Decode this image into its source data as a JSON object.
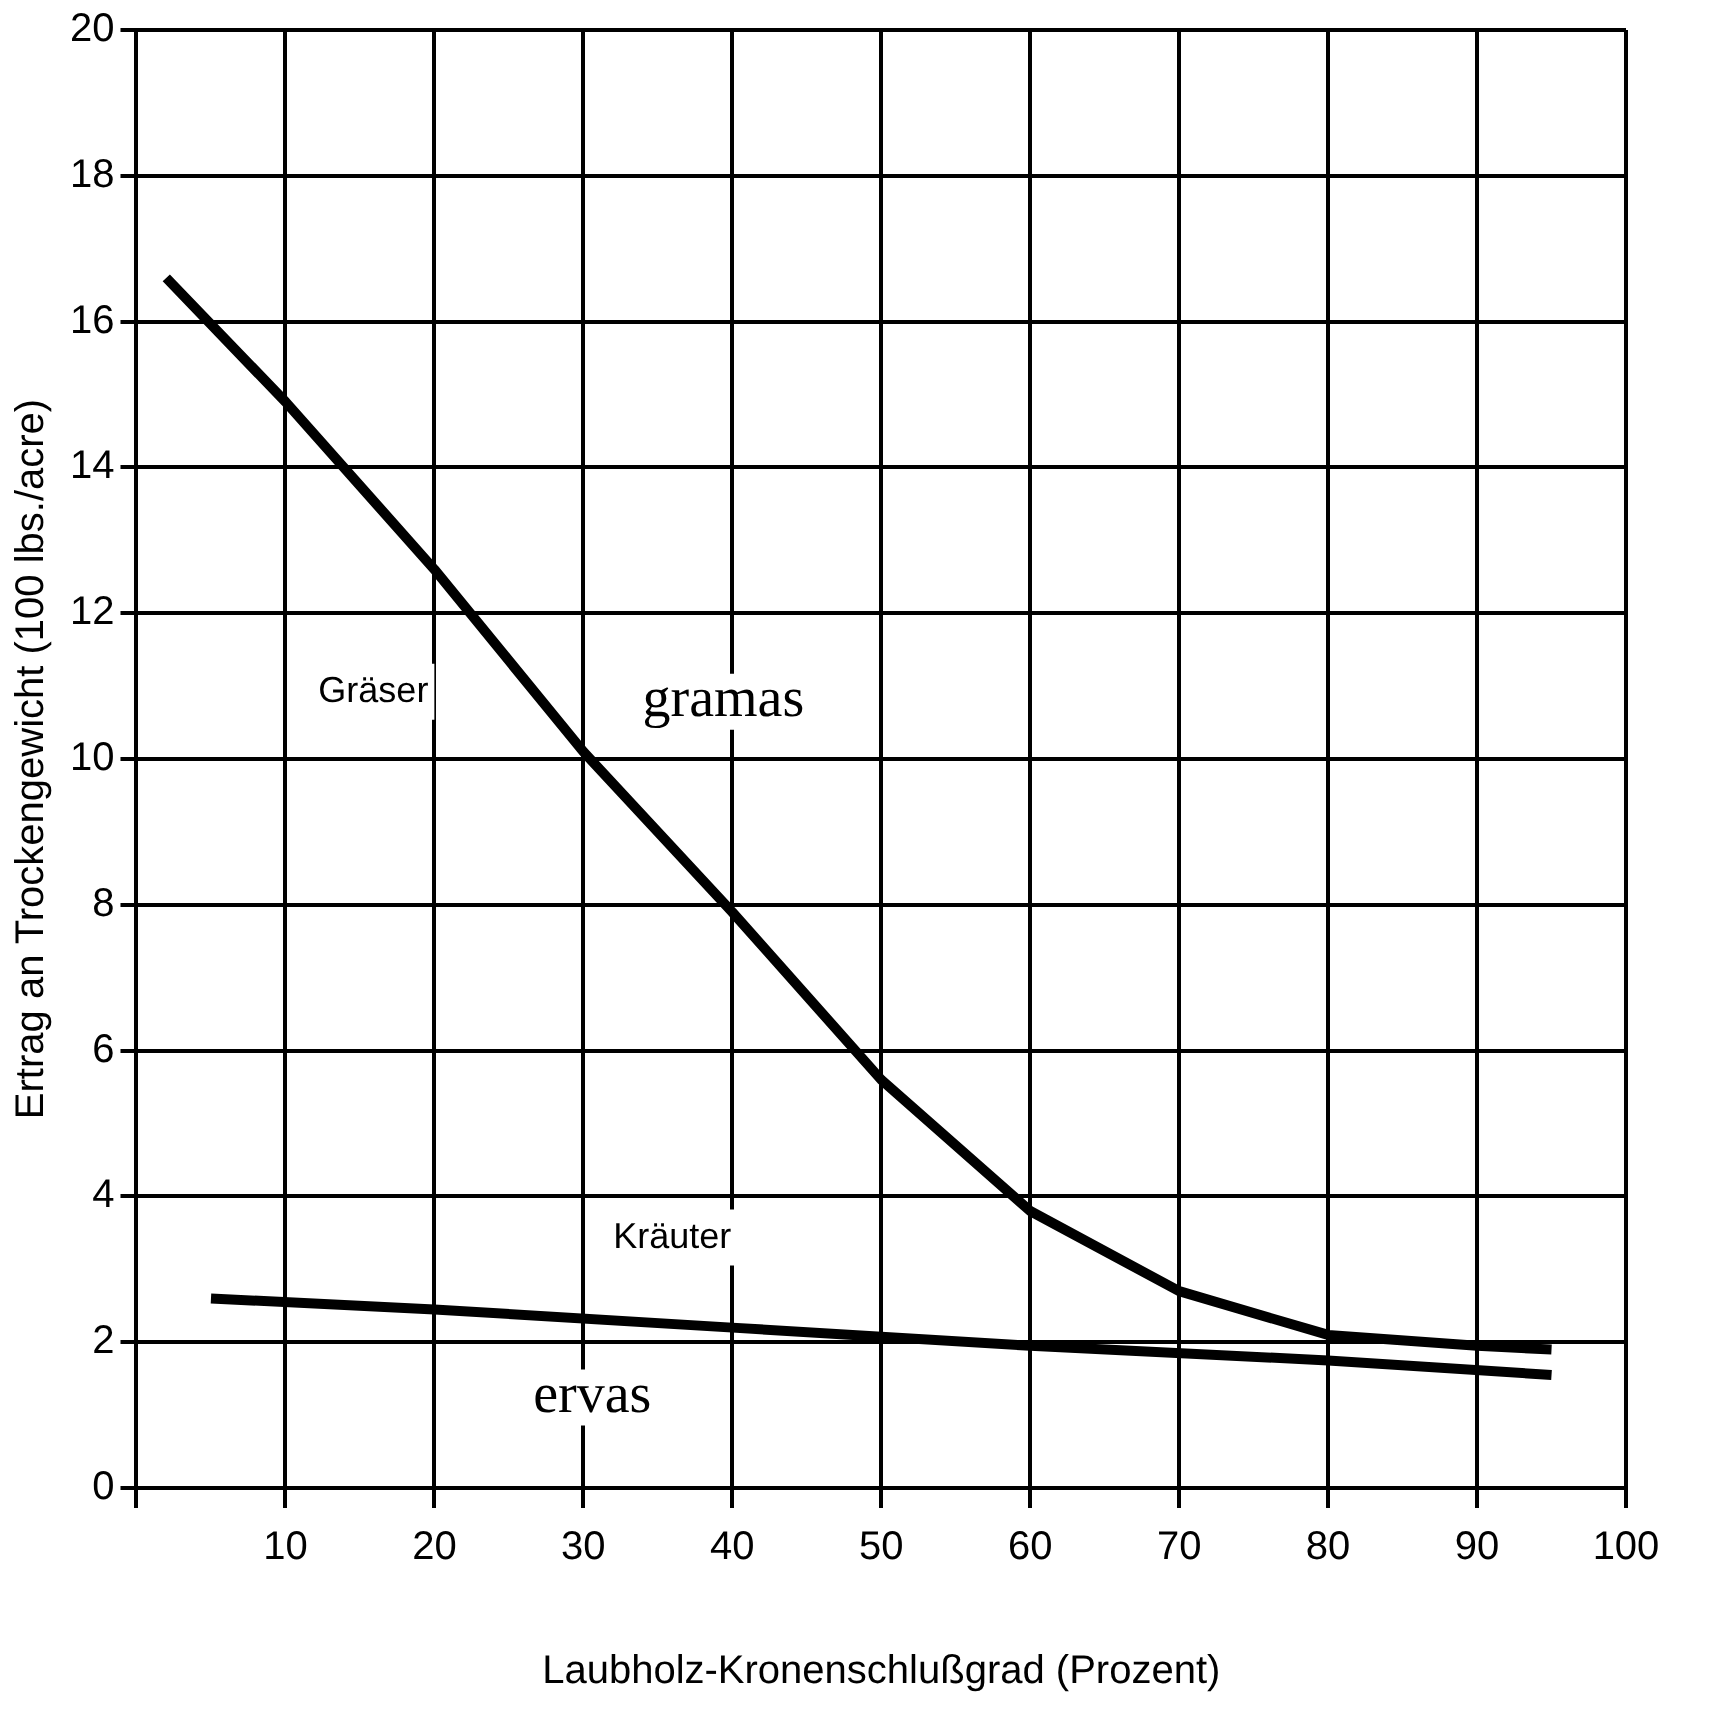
{
  "chart_data": {
    "type": "line",
    "xlabel": "Laubholz-Kronenschlußgrad (Prozent)",
    "ylabel": "Ertrag an Trockengewicht (100 lbs./acre)",
    "series": [
      {
        "name": "Gräser",
        "color": "#000000",
        "x": [
          2,
          10,
          20,
          30,
          40,
          50,
          60,
          70,
          80,
          90,
          95
        ],
        "values": [
          16.6,
          14.9,
          12.6,
          10.1,
          7.9,
          5.6,
          3.8,
          2.7,
          2.1,
          1.95,
          1.9
        ]
      },
      {
        "name": "Kräuter",
        "color": "#000000",
        "x": [
          5,
          20,
          40,
          60,
          80,
          95
        ],
        "values": [
          2.6,
          2.45,
          2.2,
          1.95,
          1.75,
          1.55
        ]
      }
    ],
    "annotations": [
      "gramas",
      "ervas"
    ],
    "xlim": [
      0,
      100
    ],
    "xticks": [
      {
        "value": 0,
        "label": null
      },
      10,
      20,
      30,
      40,
      50,
      60,
      70,
      80,
      90,
      100
    ],
    "ylim": [
      0,
      20
    ],
    "yticks": [
      0,
      2,
      4,
      6,
      8,
      10,
      12,
      14,
      16,
      18,
      20
    ],
    "grid": true,
    "legend": false,
    "marker": "none",
    "line_style": "solid"
  }
}
